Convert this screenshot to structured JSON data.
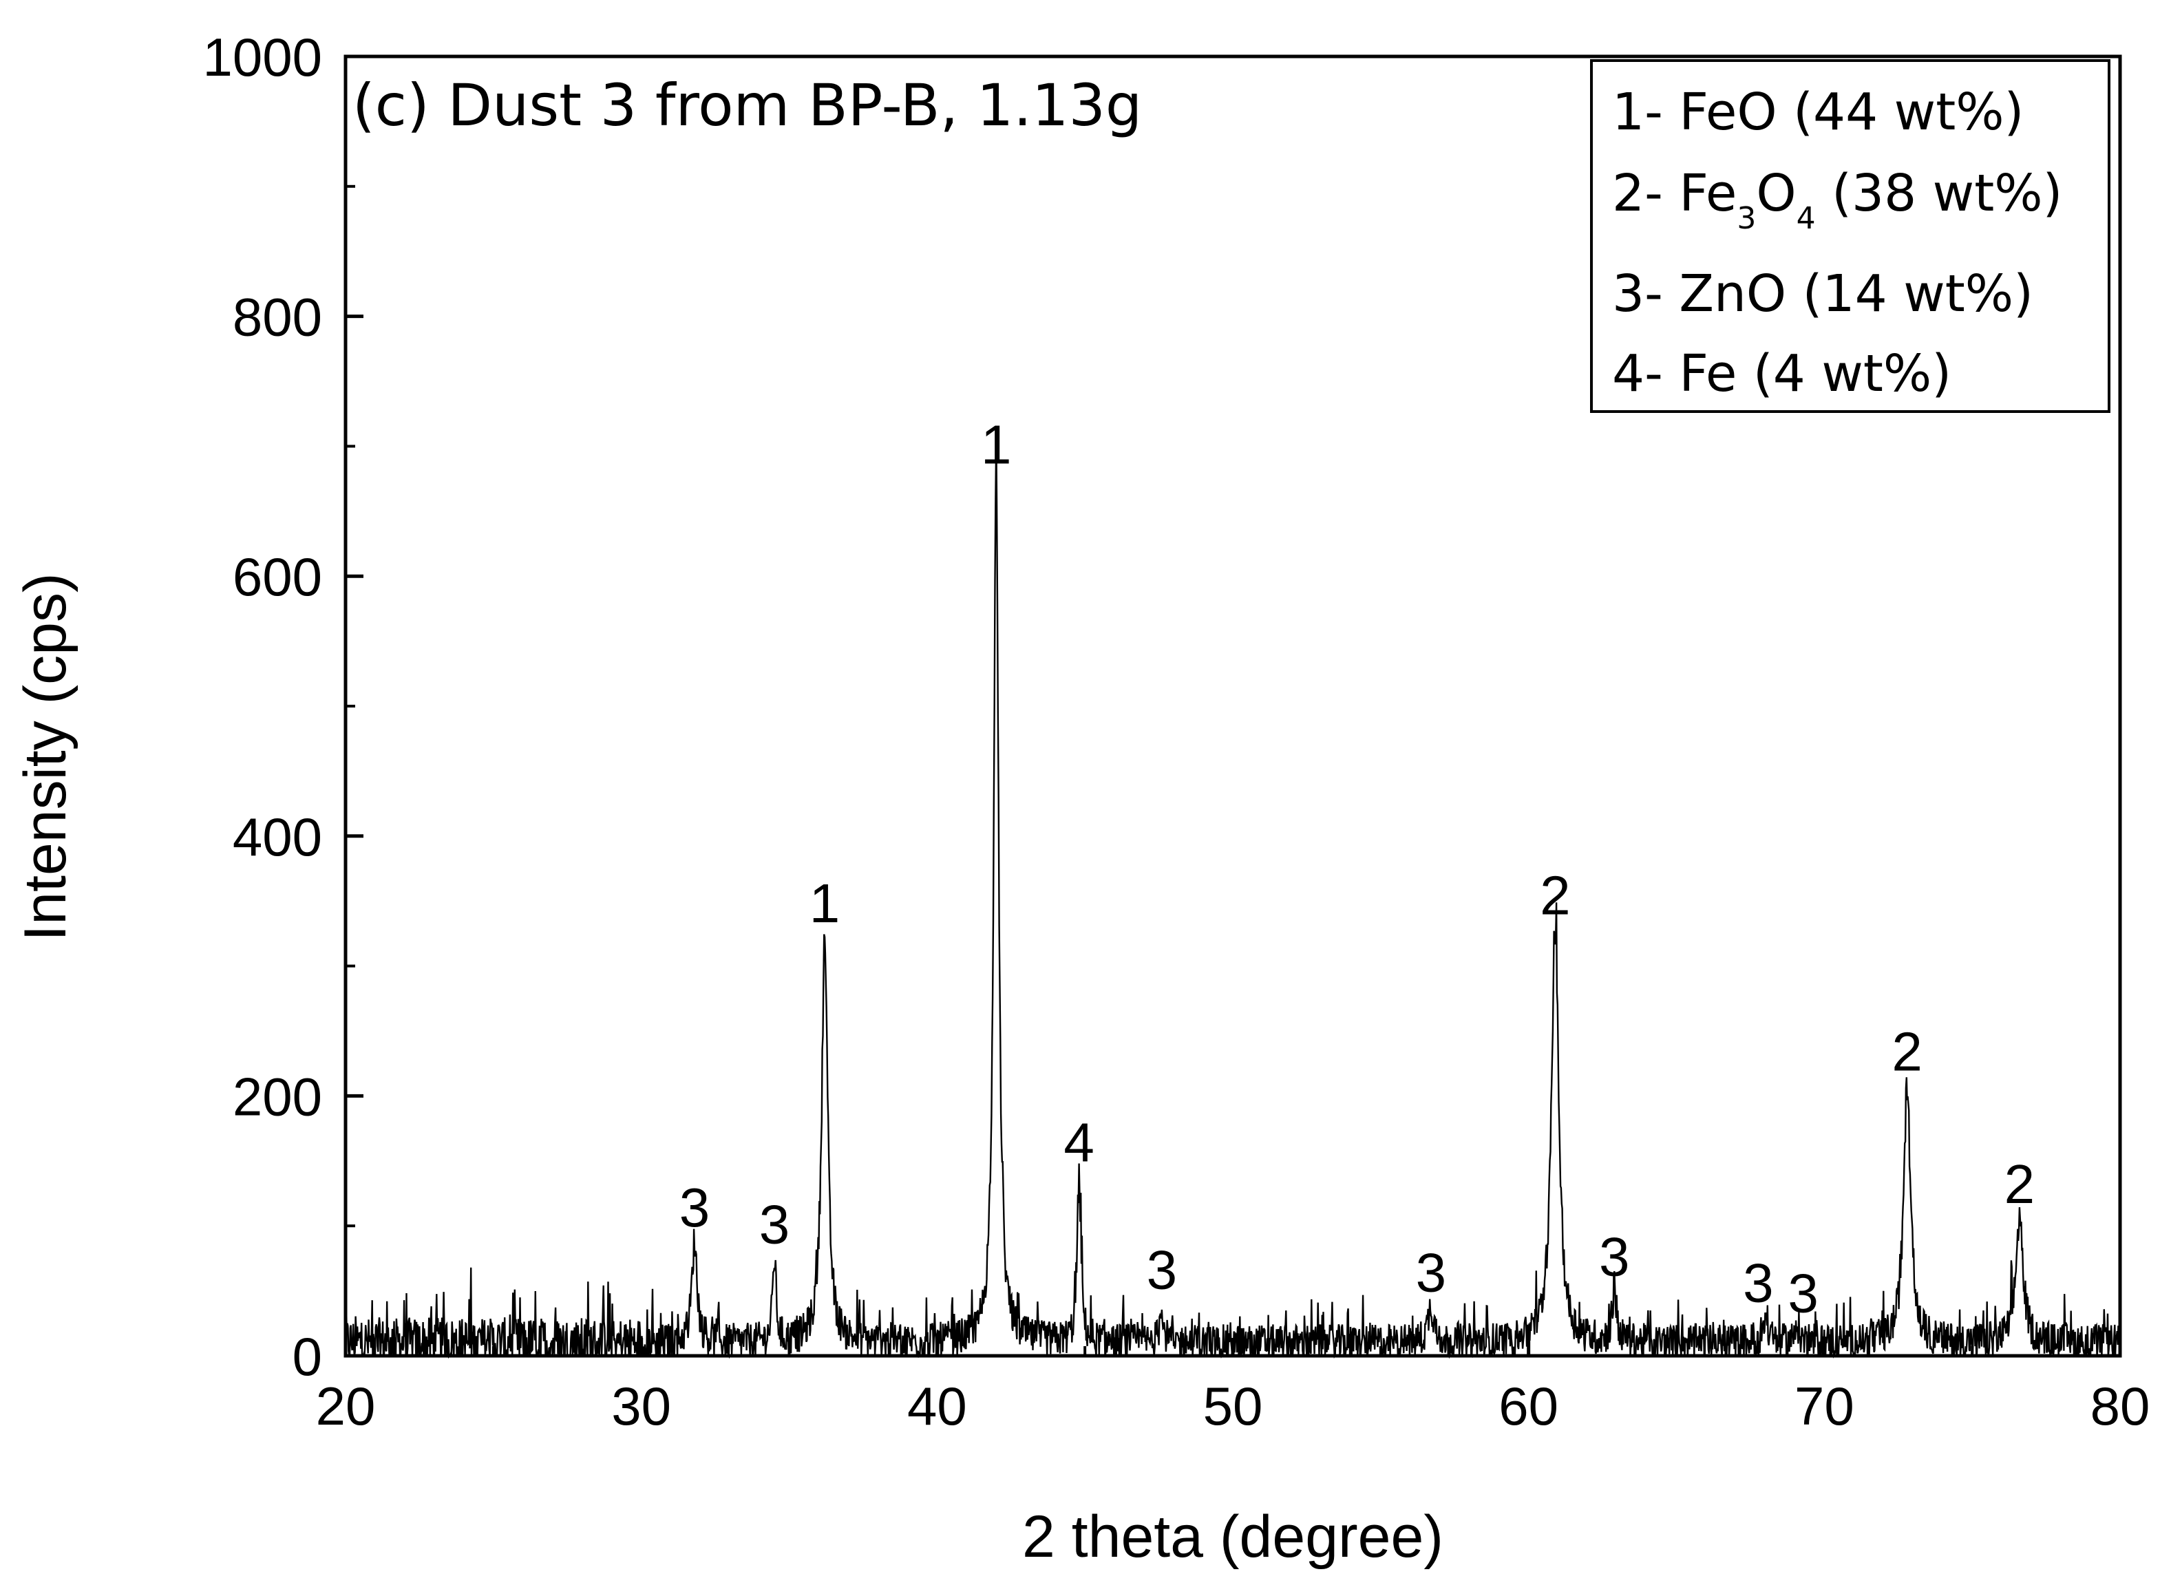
{
  "chart_data": {
    "type": "line",
    "title": "(c) Dust 3 from BP-B, 1.13g",
    "xlabel": "2 theta (degree)",
    "ylabel": "Intensity (cps)",
    "xlim": [
      20,
      80
    ],
    "ylim": [
      0,
      1000
    ],
    "x_ticks": [
      20,
      30,
      40,
      50,
      60,
      70,
      80
    ],
    "y_ticks": [
      0,
      200,
      400,
      600,
      800,
      1000
    ],
    "grid": false,
    "legend_position": "top-right",
    "legend": [
      {
        "prefix": "1- ",
        "name": "FeO",
        "suffix": " (44 wt%)"
      },
      {
        "prefix": "2- ",
        "name": "Fe",
        "sub1": "3",
        "mid": "O",
        "sub2": "4",
        "suffix": " (38 wt%)"
      },
      {
        "prefix": "3- ",
        "name": "ZnO",
        "suffix": " (14 wt%)"
      },
      {
        "prefix": "4- ",
        "name": "Fe",
        "suffix": " (4 wt%)"
      }
    ],
    "peaks": [
      {
        "x": 31.8,
        "y": 78,
        "width": 0.22,
        "label": "3"
      },
      {
        "x": 34.5,
        "y": 65,
        "width": 0.14,
        "label": "3"
      },
      {
        "x": 36.2,
        "y": 312,
        "width": 0.24,
        "label": "1"
      },
      {
        "x": 42.0,
        "y": 665,
        "width": 0.2,
        "label": "1"
      },
      {
        "x": 44.8,
        "y": 128,
        "width": 0.15,
        "label": "4"
      },
      {
        "x": 47.6,
        "y": 30,
        "width": 0.14,
        "label": "3"
      },
      {
        "x": 56.7,
        "y": 28,
        "width": 0.25,
        "label": "3"
      },
      {
        "x": 60.9,
        "y": 318,
        "width": 0.3,
        "label": "2"
      },
      {
        "x": 62.9,
        "y": 40,
        "width": 0.18,
        "label": "3"
      },
      {
        "x": 68.0,
        "y": 20,
        "width": 0.2,
        "label": "3"
      },
      {
        "x": 69.1,
        "y": 12,
        "width": 0.18,
        "label": "3"
      },
      {
        "x": 72.8,
        "y": 198,
        "width": 0.28,
        "label": "2"
      },
      {
        "x": 76.6,
        "y": 96,
        "width": 0.3,
        "label": "2"
      }
    ],
    "baseline": 10,
    "noise_amplitude": 14,
    "line_color": "#000000"
  }
}
